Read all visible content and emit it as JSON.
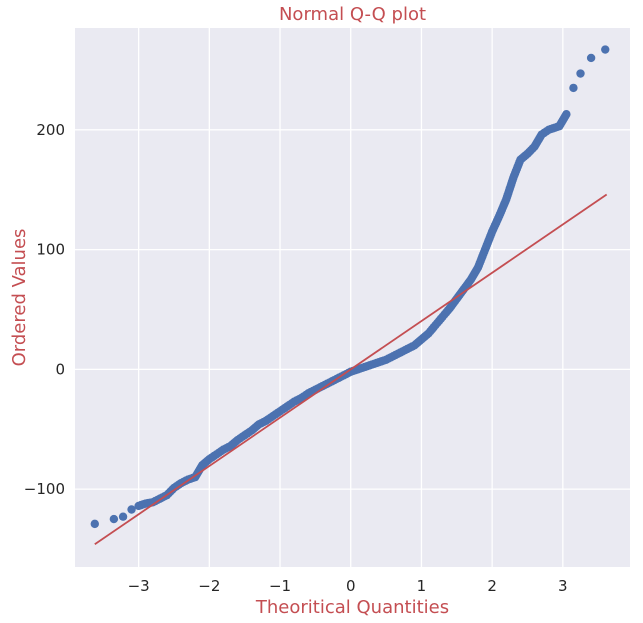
{
  "chart_data": {
    "type": "scatter",
    "title": "Normal Q-Q plot",
    "xlabel": "Theoritical Quantities",
    "ylabel": "Ordered Values",
    "xlim": [
      -3.9,
      3.95
    ],
    "ylim": [
      -165,
      285
    ],
    "xticks": [
      -3,
      -2,
      -1,
      0,
      1,
      2,
      3
    ],
    "xtick_labels": [
      "−3",
      "−2",
      "−1",
      "0",
      "1",
      "2",
      "3"
    ],
    "yticks": [
      -100,
      0,
      100,
      200
    ],
    "ytick_labels": [
      "−100",
      "0",
      "100",
      "200"
    ],
    "grid": true,
    "series": [
      {
        "kind": "points",
        "color": "#4c72b0",
        "points": [
          [
            -3.62,
            -129
          ],
          [
            -3.35,
            -125
          ],
          [
            -3.22,
            -123
          ],
          [
            -3.1,
            -117
          ],
          [
            -3.0,
            -114
          ],
          [
            -2.9,
            -112
          ],
          [
            -2.8,
            -111
          ],
          [
            -2.7,
            -108
          ],
          [
            -2.6,
            -105
          ],
          [
            -2.5,
            -99
          ],
          [
            -2.4,
            -95
          ],
          [
            -2.3,
            -92
          ],
          [
            -2.2,
            -90
          ],
          [
            -2.1,
            -80
          ],
          [
            -2.0,
            -75
          ],
          [
            -1.9,
            -71
          ],
          [
            -1.8,
            -67
          ],
          [
            -1.7,
            -64
          ],
          [
            -1.6,
            -59
          ],
          [
            -1.5,
            -55
          ],
          [
            -1.4,
            -51
          ],
          [
            -1.3,
            -46
          ],
          [
            -1.2,
            -43
          ],
          [
            -1.1,
            -39
          ],
          [
            -1.0,
            -35
          ],
          [
            -0.9,
            -31
          ],
          [
            -0.8,
            -27
          ],
          [
            -0.7,
            -24
          ],
          [
            -0.6,
            -20
          ],
          [
            -0.5,
            -17
          ],
          [
            -0.4,
            -14
          ],
          [
            -0.3,
            -11
          ],
          [
            -0.2,
            -8
          ],
          [
            -0.1,
            -5
          ],
          [
            0.0,
            -2
          ],
          [
            0.1,
            0
          ],
          [
            0.2,
            2
          ],
          [
            0.3,
            4
          ],
          [
            0.4,
            6
          ],
          [
            0.5,
            8
          ],
          [
            0.6,
            11
          ],
          [
            0.7,
            14
          ],
          [
            0.8,
            17
          ],
          [
            0.9,
            20
          ],
          [
            1.0,
            25
          ],
          [
            1.1,
            30
          ],
          [
            1.2,
            37
          ],
          [
            1.3,
            44
          ],
          [
            1.4,
            51
          ],
          [
            1.5,
            59
          ],
          [
            1.6,
            67
          ],
          [
            1.7,
            75
          ],
          [
            1.8,
            85
          ],
          [
            1.9,
            100
          ],
          [
            2.0,
            115
          ],
          [
            2.1,
            128
          ],
          [
            2.2,
            142
          ],
          [
            2.3,
            160
          ],
          [
            2.4,
            175
          ],
          [
            2.5,
            180
          ],
          [
            2.6,
            186
          ],
          [
            2.7,
            196
          ],
          [
            2.8,
            200
          ],
          [
            2.95,
            203
          ],
          [
            3.05,
            213
          ],
          [
            3.15,
            235
          ],
          [
            3.25,
            247
          ],
          [
            3.4,
            260
          ],
          [
            3.6,
            267
          ]
        ]
      },
      {
        "kind": "line",
        "color": "#c44e52",
        "points": [
          [
            -3.62,
            -146
          ],
          [
            3.62,
            146
          ]
        ]
      }
    ]
  }
}
